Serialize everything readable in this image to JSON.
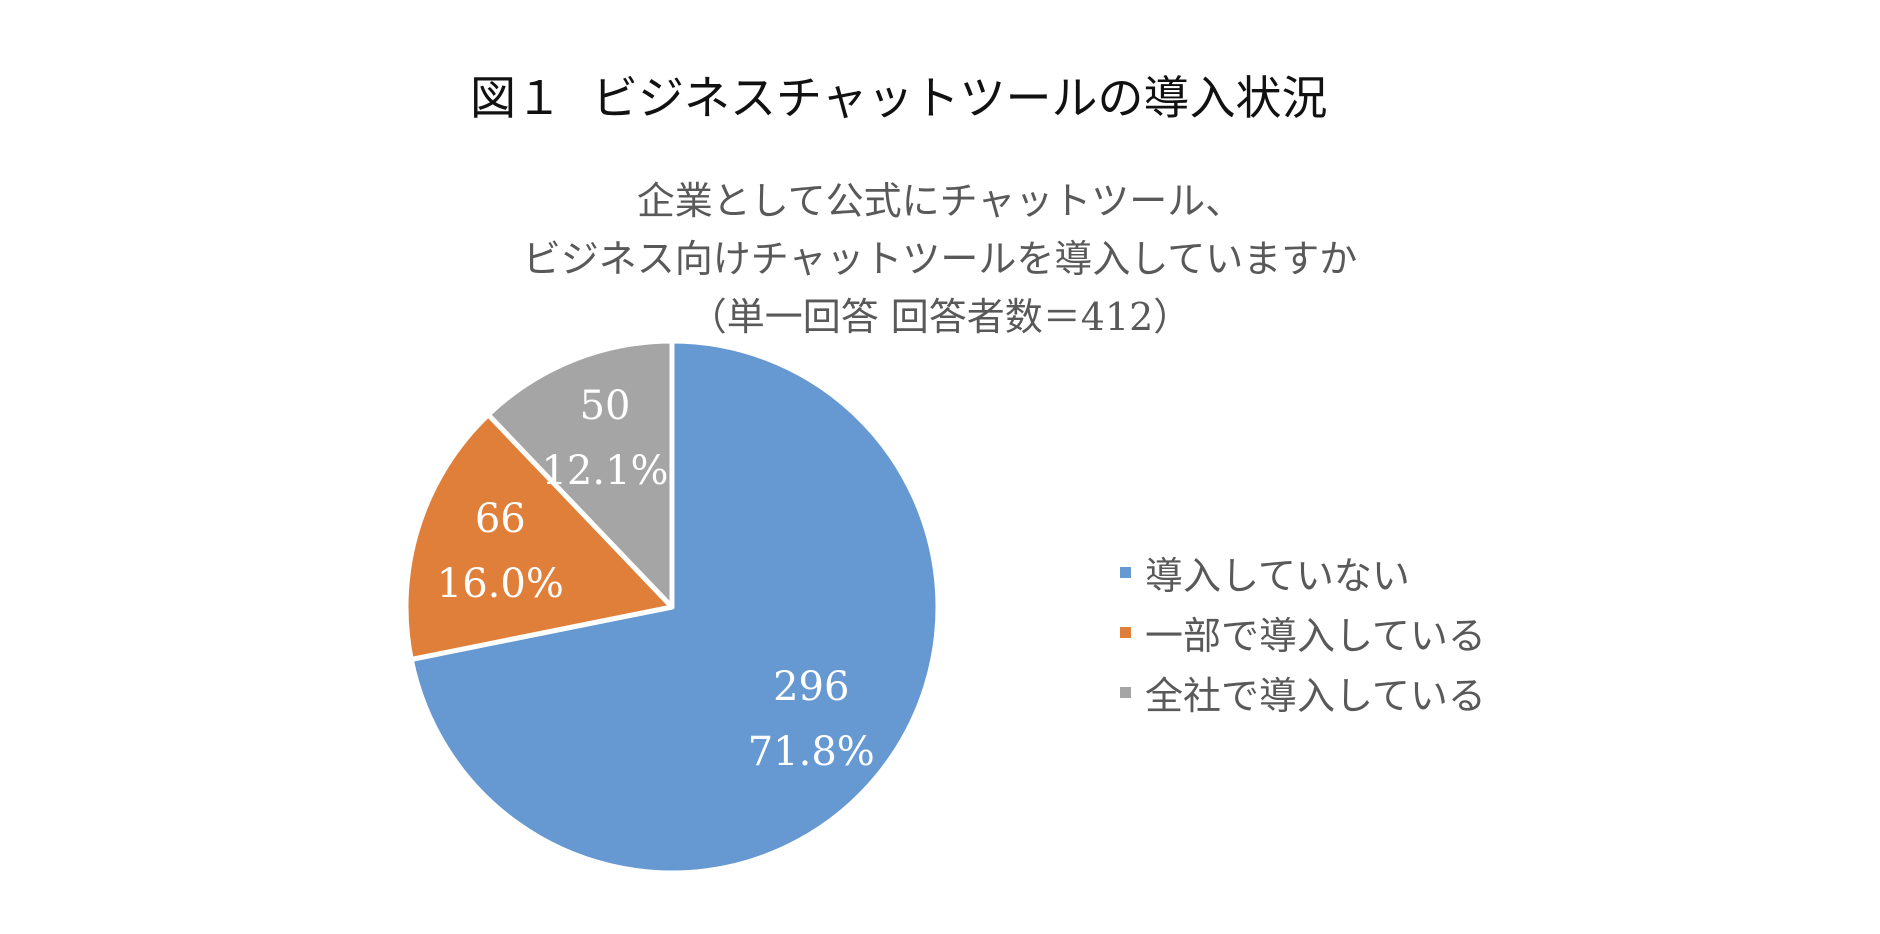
{
  "figure": {
    "number": "図１",
    "title": "ビジネスチャットツールの導入状況"
  },
  "chart_data": {
    "type": "pie",
    "title_lines": [
      "企業として公式にチャットツール、",
      "ビジネス向けチャットツールを導入していますか",
      "（単一回答 回答者数＝412）"
    ],
    "categories": [
      "導入していない",
      "一部で導入している",
      "全社で導入している"
    ],
    "values": [
      296,
      66,
      50
    ],
    "percent_labels": [
      "71.8%",
      "16.0%",
      "12.1%"
    ],
    "colors": [
      "#6699D1",
      "#E07F39",
      "#A5A5A5"
    ],
    "start": "12 o'clock",
    "direction": "clockwise",
    "legend": "right"
  }
}
